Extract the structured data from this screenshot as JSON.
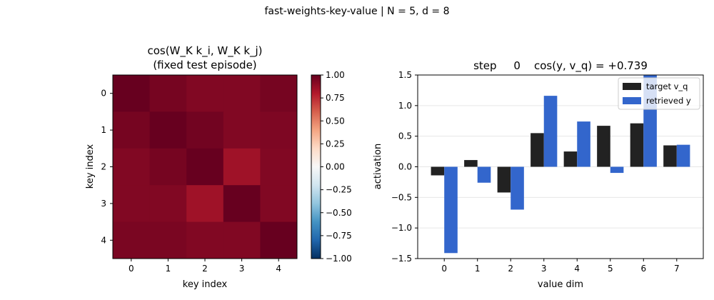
{
  "figure": {
    "suptitle": "fast-weights-key-value  |  N = 5, d = 8"
  },
  "chart_data": [
    {
      "type": "heatmap",
      "title_lines": [
        "cos(W_K k_i, W_K k_j)",
        "(fixed test episode)"
      ],
      "xlabel": "key index",
      "ylabel": "key index",
      "x_categories": [
        "0",
        "1",
        "2",
        "3",
        "4"
      ],
      "y_categories": [
        "0",
        "1",
        "2",
        "3",
        "4"
      ],
      "values": [
        [
          1.0,
          0.96,
          0.93,
          0.93,
          0.96
        ],
        [
          0.96,
          1.0,
          0.97,
          0.93,
          0.94
        ],
        [
          0.93,
          0.96,
          1.0,
          0.85,
          0.93
        ],
        [
          0.93,
          0.93,
          0.85,
          1.0,
          0.93
        ],
        [
          0.95,
          0.95,
          0.93,
          0.93,
          1.0
        ]
      ],
      "colormap": "RdBu_r",
      "vmin": -1.0,
      "vmax": 1.0,
      "colorbar_ticks": [
        "1.00",
        "0.75",
        "0.50",
        "0.25",
        "0.00",
        "−0.25",
        "−0.50",
        "−0.75",
        "−1.00"
      ],
      "colorbar_values": [
        1.0,
        0.75,
        0.5,
        0.25,
        0.0,
        -0.25,
        -0.5,
        -0.75,
        -1.0
      ]
    },
    {
      "type": "bar",
      "title": "step     0    cos(y, v_q) = +0.739",
      "xlabel": "value dim",
      "ylabel": "activation",
      "categories": [
        "0",
        "1",
        "2",
        "3",
        "4",
        "5",
        "6",
        "7"
      ],
      "ylim": [
        -1.5,
        1.5
      ],
      "yticks": [
        -1.5,
        -1.0,
        -0.5,
        0.0,
        0.5,
        1.0,
        1.5
      ],
      "ytick_labels": [
        "−1.5",
        "−1.0",
        "−0.5",
        "0.0",
        "0.5",
        "1.0",
        "1.5"
      ],
      "grid": "y",
      "legend_position": "top-right",
      "series": [
        {
          "name": "target v_q",
          "color": "#222222",
          "values": [
            -0.14,
            0.11,
            -0.42,
            0.55,
            0.25,
            0.67,
            0.71,
            0.35
          ]
        },
        {
          "name": "retrieved y",
          "color": "#3366cc",
          "values": [
            -1.41,
            -0.26,
            -0.7,
            1.16,
            0.74,
            -0.1,
            1.55,
            0.36
          ]
        }
      ]
    }
  ]
}
